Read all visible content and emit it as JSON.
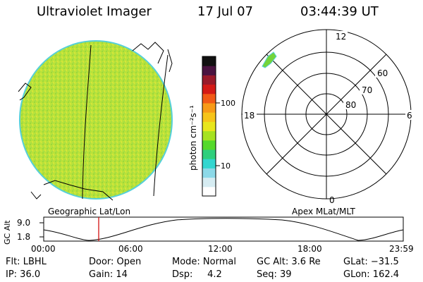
{
  "header": {
    "title": "Ultraviolet Imager",
    "date": "17 Jul 07",
    "time": "03:44:39 UT"
  },
  "images": {
    "left_caption": "Geographic Lat/Lon",
    "right_caption": "Apex MLat/MLT"
  },
  "colorbar": {
    "unit_label": "photon cm⁻²s⁻¹",
    "ticks": [
      {
        "label": "100",
        "value": 100
      },
      {
        "label": "10",
        "value": 10
      }
    ],
    "colors": [
      "#ffffff",
      "#d6ecf2",
      "#8cd9e8",
      "#33d6d0",
      "#2fcf7c",
      "#55d92b",
      "#a6e220",
      "#e8e61c",
      "#f6c419",
      "#f79a17",
      "#f15a16",
      "#d41a16",
      "#991a2a",
      "#4a1340",
      "#111111"
    ]
  },
  "polar": {
    "mlt_labels": {
      "top": "12",
      "left": "18",
      "right": "6",
      "bottom": "0"
    },
    "lat_labels": [
      "60",
      "70",
      "80"
    ]
  },
  "altitude_plot": {
    "ylabel": "GC Alt",
    "yticks": [
      "9.0",
      "1.8"
    ],
    "xticks": [
      "00:00",
      "06:00",
      "12:00",
      "18:00",
      "23:59"
    ],
    "marker_time": "03:44:39"
  },
  "footer": {
    "flt": "Flt: LBHL",
    "ip": "IP: 36.0",
    "door": "Door: Open",
    "gain": "Gain: 14",
    "mode": "Mode: Normal",
    "dsp": "Dsp:     4.2",
    "gcalt": "GC Alt: 3.6 Re",
    "seq": "Seq: 39",
    "glat": "GLat: −31.5",
    "glon": "GLon: 162.4"
  }
}
